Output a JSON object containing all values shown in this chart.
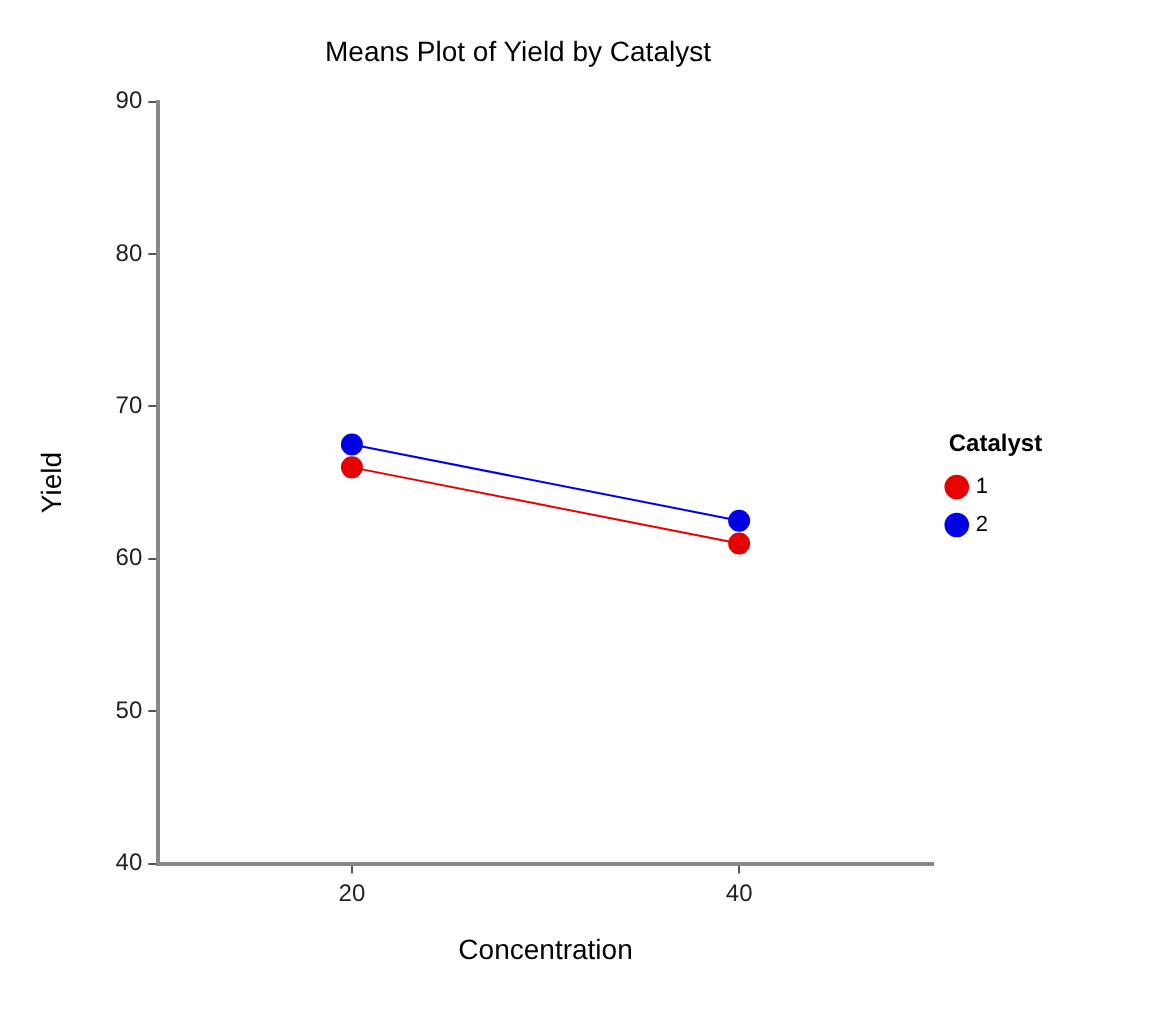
{
  "chart_data": {
    "type": "line",
    "title": "Means Plot of Yield by Catalyst",
    "xlabel": "Concentration",
    "ylabel": "Yield",
    "legend_title": "Catalyst",
    "x": [
      20,
      40
    ],
    "series": [
      {
        "name": "1",
        "color": "#e60000",
        "values": [
          66,
          61
        ]
      },
      {
        "name": "2",
        "color": "#0000e6",
        "values": [
          67.5,
          62.5
        ]
      }
    ],
    "xlim": [
      10,
      50
    ],
    "xticks": [
      20,
      40
    ],
    "ylim": [
      40,
      90
    ],
    "yticks": [
      40,
      50,
      60,
      70,
      80,
      90
    ],
    "grid": false,
    "legend": "right",
    "marker": "circle",
    "line_style": "solid"
  }
}
